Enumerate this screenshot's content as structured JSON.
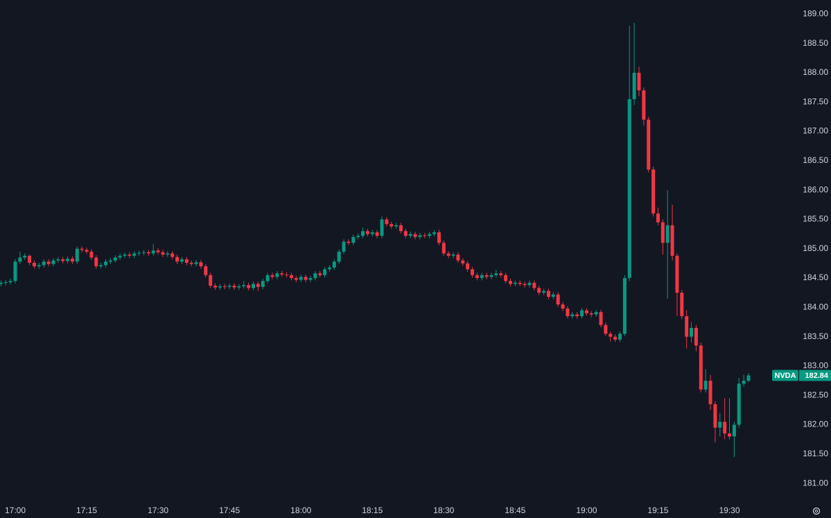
{
  "chart_data": {
    "type": "candlestick",
    "up_color": "#089981",
    "down_color": "#f23645",
    "ylim": [
      180.67,
      189.24
    ],
    "yticks": [
      {
        "value": 181,
        "label": "181.00"
      },
      {
        "value": 181.5,
        "label": "181.50"
      },
      {
        "value": 182,
        "label": "182.00"
      },
      {
        "value": 182.5,
        "label": "182.50"
      },
      {
        "value": 183,
        "label": "183.00"
      },
      {
        "value": 183.5,
        "label": "183.50"
      },
      {
        "value": 184,
        "label": "184.00"
      },
      {
        "value": 184.5,
        "label": "184.50"
      },
      {
        "value": 185,
        "label": "185.00"
      },
      {
        "value": 185.5,
        "label": "185.50"
      },
      {
        "value": 186,
        "label": "186.00"
      },
      {
        "value": 186.5,
        "label": "186.50"
      },
      {
        "value": 187,
        "label": "187.00"
      },
      {
        "value": 187.5,
        "label": "187.50"
      },
      {
        "value": 188,
        "label": "188.00"
      },
      {
        "value": 188.5,
        "label": "188.50"
      },
      {
        "value": 189,
        "label": "189.00"
      }
    ],
    "xticks": [
      "17:00",
      "17:15",
      "17:30",
      "17:45",
      "18:00",
      "18:15",
      "18:30",
      "18:45",
      "19:00",
      "19:15",
      "19:30"
    ],
    "last_price": {
      "symbol": "NVDA",
      "value": 182.84
    },
    "x": [
      "16:57",
      "16:58",
      "16:59",
      "17:00",
      "17:01",
      "17:02",
      "17:03",
      "17:04",
      "17:05",
      "17:06",
      "17:07",
      "17:08",
      "17:09",
      "17:10",
      "17:11",
      "17:12",
      "17:13",
      "17:14",
      "17:15",
      "17:16",
      "17:17",
      "17:18",
      "17:19",
      "17:20",
      "17:21",
      "17:22",
      "17:23",
      "17:24",
      "17:25",
      "17:26",
      "17:27",
      "17:28",
      "17:29",
      "17:30",
      "17:31",
      "17:32",
      "17:33",
      "17:34",
      "17:35",
      "17:36",
      "17:37",
      "17:38",
      "17:39",
      "17:40",
      "17:41",
      "17:42",
      "17:43",
      "17:44",
      "17:45",
      "17:46",
      "17:47",
      "17:48",
      "17:49",
      "17:50",
      "17:51",
      "17:52",
      "17:53",
      "17:54",
      "17:55",
      "17:56",
      "17:57",
      "17:58",
      "17:59",
      "18:00",
      "18:01",
      "18:02",
      "18:03",
      "18:04",
      "18:05",
      "18:06",
      "18:07",
      "18:08",
      "18:09",
      "18:10",
      "18:11",
      "18:12",
      "18:13",
      "18:14",
      "18:15",
      "18:16",
      "18:17",
      "18:18",
      "18:19",
      "18:20",
      "18:21",
      "18:22",
      "18:23",
      "18:24",
      "18:25",
      "18:26",
      "18:27",
      "18:28",
      "18:29",
      "18:30",
      "18:31",
      "18:32",
      "18:33",
      "18:34",
      "18:35",
      "18:36",
      "18:37",
      "18:38",
      "18:39",
      "18:40",
      "18:41",
      "18:42",
      "18:43",
      "18:44",
      "18:45",
      "18:46",
      "18:47",
      "18:48",
      "18:49",
      "18:50",
      "18:51",
      "18:52",
      "18:53",
      "18:54",
      "18:55",
      "18:56",
      "18:57",
      "18:58",
      "18:59",
      "19:00",
      "19:01",
      "19:02",
      "19:03",
      "19:04",
      "19:05",
      "19:06",
      "19:07",
      "19:08",
      "19:09",
      "19:10",
      "19:11",
      "19:12",
      "19:13",
      "19:14",
      "19:15",
      "19:16",
      "19:17",
      "19:18",
      "19:19",
      "19:20",
      "19:21",
      "19:22",
      "19:23",
      "19:24",
      "19:25",
      "19:26",
      "19:27",
      "19:28",
      "19:29",
      "19:30",
      "19:31",
      "19:32",
      "19:33",
      "19:34"
    ],
    "open": [
      184.4,
      184.42,
      184.43,
      184.45,
      184.78,
      184.85,
      184.88,
      184.76,
      184.7,
      184.72,
      184.78,
      184.74,
      184.8,
      184.82,
      184.79,
      184.83,
      184.78,
      185.0,
      184.98,
      184.95,
      184.85,
      184.7,
      184.72,
      184.78,
      184.8,
      184.85,
      184.88,
      184.9,
      184.88,
      184.92,
      184.93,
      184.94,
      184.92,
      184.97,
      184.94,
      184.9,
      184.92,
      184.86,
      184.78,
      184.82,
      184.76,
      184.74,
      184.77,
      184.7,
      184.55,
      184.37,
      184.34,
      184.36,
      184.35,
      184.37,
      184.34,
      184.36,
      184.38,
      184.33,
      184.4,
      184.35,
      184.45,
      184.55,
      184.52,
      184.58,
      184.56,
      184.55,
      184.5,
      184.47,
      184.52,
      184.47,
      184.5,
      184.58,
      184.55,
      184.65,
      184.68,
      184.78,
      184.95,
      185.12,
      185.1,
      185.2,
      185.22,
      185.3,
      185.25,
      185.28,
      185.22,
      185.5,
      185.42,
      185.38,
      185.4,
      185.3,
      185.22,
      185.25,
      185.2,
      185.23,
      185.22,
      185.25,
      185.28,
      185.1,
      184.92,
      184.88,
      184.9,
      184.8,
      184.75,
      184.65,
      184.55,
      184.5,
      184.55,
      184.52,
      184.55,
      184.58,
      184.55,
      184.45,
      184.4,
      184.42,
      184.4,
      184.38,
      184.42,
      184.33,
      184.25,
      184.28,
      184.18,
      184.22,
      184.05,
      183.98,
      183.85,
      183.88,
      183.85,
      183.95,
      183.9,
      183.88,
      183.92,
      183.7,
      183.55,
      183.5,
      183.45,
      183.55,
      184.5,
      187.55,
      188.0,
      187.7,
      187.2,
      186.35,
      185.6,
      185.45,
      185.1,
      185.4,
      184.88,
      184.25,
      183.85,
      183.5,
      183.65,
      183.35,
      182.6,
      182.75,
      182.35,
      181.95,
      182.05,
      181.85,
      181.8,
      182.0,
      182.7,
      182.75
    ],
    "high": [
      184.46,
      184.47,
      184.49,
      184.82,
      184.95,
      184.92,
      184.9,
      184.8,
      184.76,
      184.82,
      184.82,
      184.84,
      184.86,
      184.86,
      184.87,
      184.87,
      185.04,
      185.04,
      185.02,
      184.99,
      184.89,
      184.76,
      184.82,
      184.84,
      184.89,
      184.92,
      184.94,
      184.94,
      184.96,
      184.97,
      184.98,
      184.98,
      185.08,
      185.01,
      184.98,
      184.96,
      184.96,
      184.9,
      184.86,
      184.86,
      184.8,
      184.81,
      184.81,
      184.74,
      184.59,
      184.41,
      184.4,
      184.4,
      184.41,
      184.41,
      184.4,
      184.45,
      184.42,
      184.44,
      184.44,
      184.49,
      184.59,
      184.59,
      184.62,
      184.62,
      184.6,
      184.59,
      184.54,
      184.56,
      184.56,
      184.54,
      184.62,
      184.62,
      184.69,
      184.72,
      184.82,
      184.99,
      185.16,
      185.16,
      185.24,
      185.26,
      185.36,
      185.34,
      185.32,
      185.32,
      185.55,
      185.54,
      185.46,
      185.44,
      185.44,
      185.34,
      185.29,
      185.29,
      185.27,
      185.27,
      185.29,
      185.32,
      185.32,
      185.14,
      184.96,
      184.94,
      184.94,
      184.84,
      184.79,
      184.69,
      184.59,
      184.59,
      184.59,
      184.59,
      184.64,
      184.62,
      184.59,
      184.49,
      184.46,
      184.46,
      184.44,
      184.46,
      184.46,
      184.37,
      184.32,
      184.32,
      184.26,
      184.26,
      184.09,
      184.02,
      183.92,
      183.92,
      183.99,
      183.99,
      183.94,
      183.96,
      183.96,
      183.74,
      183.59,
      183.54,
      183.59,
      184.55,
      188.8,
      188.85,
      188.1,
      187.75,
      187.25,
      186.4,
      185.7,
      185.5,
      186.0,
      185.75,
      184.92,
      184.3,
      183.95,
      183.75,
      183.7,
      183.4,
      182.95,
      182.85,
      182.4,
      182.2,
      182.45,
      182.45,
      182.05,
      182.8,
      182.85,
      182.88
    ],
    "low": [
      184.36,
      184.38,
      184.39,
      184.41,
      184.74,
      184.81,
      184.72,
      184.66,
      184.66,
      184.68,
      184.7,
      184.7,
      184.76,
      184.75,
      184.75,
      184.74,
      184.74,
      184.94,
      184.91,
      184.81,
      184.66,
      184.66,
      184.68,
      184.74,
      184.76,
      184.81,
      184.84,
      184.84,
      184.84,
      184.88,
      184.89,
      184.88,
      184.88,
      184.9,
      184.86,
      184.86,
      184.82,
      184.74,
      184.74,
      184.72,
      184.7,
      184.7,
      184.66,
      184.51,
      184.33,
      184.3,
      184.3,
      184.31,
      184.31,
      184.3,
      184.3,
      184.32,
      184.29,
      184.29,
      184.28,
      184.31,
      184.41,
      184.48,
      184.48,
      184.52,
      184.51,
      184.46,
      184.43,
      184.43,
      184.43,
      184.43,
      184.46,
      184.51,
      184.51,
      184.61,
      184.64,
      184.74,
      184.91,
      185.06,
      185.06,
      185.16,
      185.18,
      185.21,
      185.21,
      185.18,
      185.18,
      185.38,
      185.34,
      185.34,
      185.26,
      185.18,
      185.18,
      185.16,
      185.16,
      185.18,
      185.18,
      185.21,
      185.06,
      184.88,
      184.84,
      184.84,
      184.76,
      184.71,
      184.61,
      184.51,
      184.46,
      184.46,
      184.48,
      184.48,
      184.51,
      184.51,
      184.41,
      184.36,
      184.36,
      184.36,
      184.34,
      184.34,
      184.29,
      184.21,
      184.21,
      184.14,
      184.14,
      184.01,
      183.94,
      183.81,
      183.81,
      183.81,
      183.81,
      183.86,
      183.84,
      183.84,
      183.66,
      183.51,
      183.42,
      183.41,
      183.41,
      183.51,
      184.45,
      187.45,
      187.6,
      187.1,
      186.3,
      185.55,
      185.4,
      184.9,
      184.15,
      184.8,
      183.85,
      183.8,
      183.3,
      183.4,
      183.25,
      182.55,
      182.55,
      182.25,
      181.7,
      181.8,
      181.75,
      181.75,
      181.45,
      181.95,
      182.65,
      182.72
    ],
    "close": [
      184.42,
      184.43,
      184.45,
      184.78,
      184.85,
      184.88,
      184.76,
      184.7,
      184.72,
      184.78,
      184.74,
      184.8,
      184.82,
      184.79,
      184.83,
      184.78,
      185.0,
      184.98,
      184.95,
      184.85,
      184.7,
      184.72,
      184.78,
      184.8,
      184.85,
      184.88,
      184.9,
      184.88,
      184.92,
      184.93,
      184.94,
      184.92,
      184.97,
      184.94,
      184.9,
      184.92,
      184.86,
      184.78,
      184.82,
      184.76,
      184.74,
      184.77,
      184.7,
      184.55,
      184.37,
      184.34,
      184.36,
      184.35,
      184.37,
      184.34,
      184.36,
      184.38,
      184.33,
      184.4,
      184.35,
      184.45,
      184.55,
      184.52,
      184.58,
      184.56,
      184.55,
      184.5,
      184.47,
      184.52,
      184.47,
      184.5,
      184.58,
      184.55,
      184.65,
      184.68,
      184.78,
      184.95,
      185.12,
      185.1,
      185.2,
      185.22,
      185.3,
      185.25,
      185.28,
      185.22,
      185.5,
      185.42,
      185.38,
      185.4,
      185.3,
      185.22,
      185.25,
      185.2,
      185.23,
      185.22,
      185.25,
      185.28,
      185.1,
      184.92,
      184.88,
      184.9,
      184.8,
      184.75,
      184.65,
      184.55,
      184.5,
      184.55,
      184.52,
      184.55,
      184.58,
      184.55,
      184.45,
      184.4,
      184.42,
      184.4,
      184.38,
      184.42,
      184.33,
      184.25,
      184.28,
      184.18,
      184.22,
      184.05,
      183.98,
      183.85,
      183.88,
      183.85,
      183.95,
      183.9,
      183.88,
      183.92,
      183.7,
      183.55,
      183.5,
      183.45,
      183.55,
      184.5,
      187.55,
      188.0,
      187.7,
      187.2,
      186.35,
      185.6,
      185.45,
      185.1,
      185.4,
      184.88,
      184.25,
      183.85,
      183.5,
      183.65,
      183.35,
      182.6,
      182.75,
      182.35,
      181.95,
      182.05,
      181.85,
      181.8,
      182.0,
      182.7,
      182.75,
      182.84
    ]
  }
}
